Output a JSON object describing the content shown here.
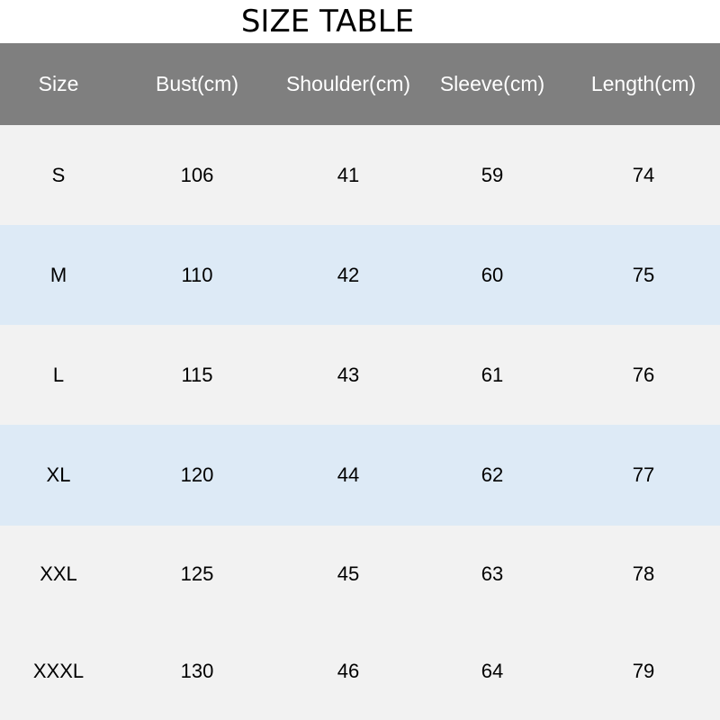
{
  "title": "SIZE TABLE",
  "headers": [
    "Size",
    "Bust(cm)",
    "Shoulder(cm)",
    "Sleeve(cm)",
    "Length(cm)"
  ],
  "rows": [
    [
      "S",
      "106",
      "41",
      "59",
      "74"
    ],
    [
      "M",
      "110",
      "42",
      "60",
      "75"
    ],
    [
      "L",
      "115",
      "43",
      "61",
      "76"
    ],
    [
      "XL",
      "120",
      "44",
      "62",
      "77"
    ],
    [
      "XXL",
      "125",
      "45",
      "63",
      "78"
    ],
    [
      "XXXL",
      "130",
      "46",
      "64",
      "79"
    ]
  ],
  "colors": {
    "header_bg": "#7f7f7f",
    "row_gray": "#f2f2f2",
    "row_blue": "#ddeaf6"
  }
}
